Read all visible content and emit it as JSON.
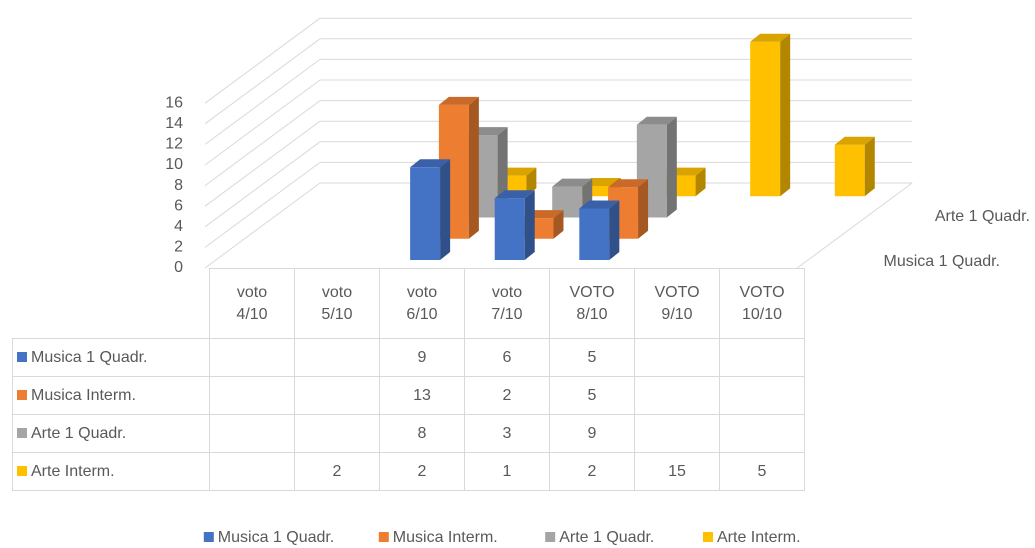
{
  "chart_data": {
    "type": "bar3d",
    "categories": [
      "voto 4/10",
      "voto 5/10",
      "voto 6/10",
      "voto 7/10",
      "VOTO 8/10",
      "VOTO 9/10",
      "VOTO 10/10"
    ],
    "series": [
      {
        "name": "Musica 1 Quadr.",
        "color": "#4472c4",
        "values": [
          null,
          null,
          9,
          6,
          5,
          null,
          null
        ]
      },
      {
        "name": "Musica Interm.",
        "color": "#ed7d31",
        "values": [
          null,
          null,
          13,
          2,
          5,
          null,
          null
        ]
      },
      {
        "name": "Arte 1 Quadr.",
        "color": "#a5a5a5",
        "values": [
          null,
          null,
          8,
          3,
          9,
          null,
          null
        ]
      },
      {
        "name": "Arte Interm.",
        "color": "#ffc000",
        "values": [
          null,
          2,
          2,
          1,
          2,
          15,
          5
        ]
      }
    ],
    "ylim": [
      0,
      16
    ],
    "yticks": [
      0,
      2,
      4,
      6,
      8,
      10,
      12,
      14,
      16
    ],
    "grid": true,
    "legend": "bottom",
    "data_table": true
  }
}
